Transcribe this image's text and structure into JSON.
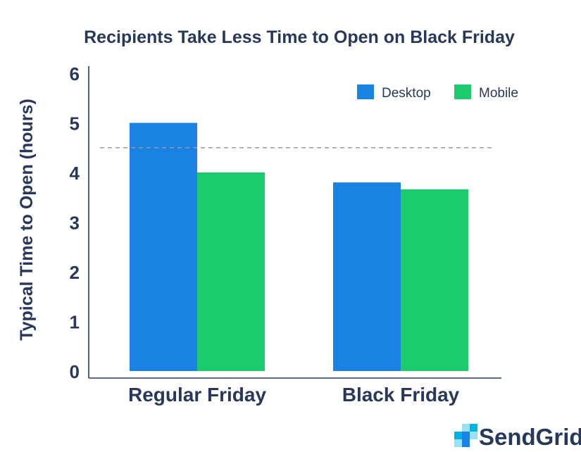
{
  "chart_data": {
    "type": "bar",
    "title": "Recipients Take Less Time to Open on Black Friday",
    "ylabel": "Typical Time to Open (hours)",
    "xlabel": "",
    "categories": [
      "Regular Friday",
      "Black Friday"
    ],
    "series": [
      {
        "name": "Desktop",
        "values": [
          5.0,
          3.8
        ],
        "color": "#1a82e2"
      },
      {
        "name": "Mobile",
        "values": [
          4.0,
          3.66
        ],
        "color": "#1ccb6b"
      }
    ],
    "ylim": [
      0,
      6
    ],
    "yticks": [
      0,
      1,
      2,
      3,
      4,
      5,
      6
    ],
    "reference_line": {
      "y": 4.5,
      "style": "dashed",
      "color": "#9b9b9b"
    },
    "grid": false,
    "legend": {
      "placement": "top-right"
    }
  },
  "brand": {
    "name": "SendGrid",
    "logo_icon": "sendgrid-logo-icon",
    "colors": [
      "#1a82e2",
      "#00b3e3",
      "#99e1f4"
    ]
  },
  "colors": {
    "text": "#27385a",
    "axis": "#27385a"
  }
}
